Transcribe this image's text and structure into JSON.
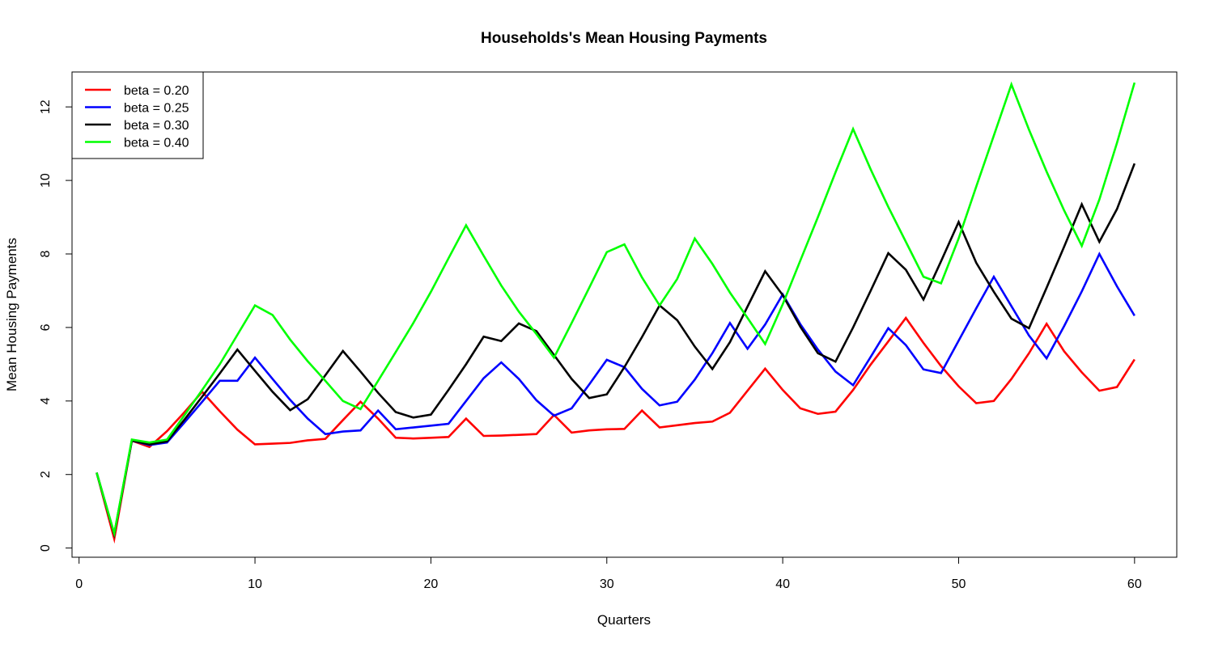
{
  "chart_data": {
    "type": "line",
    "title": "Households's Mean Housing Payments",
    "xlabel": "Quarters",
    "ylabel": "Mean Housing Payments",
    "xlim": [
      -0.4,
      62.4
    ],
    "ylim": [
      -0.25,
      12.95
    ],
    "xticks": [
      0,
      10,
      20,
      30,
      40,
      50,
      60
    ],
    "yticks": [
      0,
      2,
      4,
      6,
      8,
      10,
      12
    ],
    "legend_position": "top-left",
    "x": [
      1,
      2,
      3,
      4,
      5,
      6,
      7,
      8,
      9,
      10,
      11,
      12,
      13,
      14,
      15,
      16,
      17,
      18,
      19,
      20,
      21,
      22,
      23,
      24,
      25,
      26,
      27,
      28,
      29,
      30,
      31,
      32,
      33,
      34,
      35,
      36,
      37,
      38,
      39,
      40,
      41,
      42,
      43,
      44,
      45,
      46,
      47,
      48,
      49,
      50,
      51,
      52,
      53,
      54,
      55,
      56,
      57,
      58,
      59,
      60
    ],
    "series": [
      {
        "name": "beta = 0.20",
        "color": "#ff0000",
        "values": [
          2.05,
          0.25,
          2.92,
          2.75,
          3.18,
          3.7,
          4.25,
          3.72,
          3.22,
          2.82,
          2.84,
          2.86,
          2.93,
          2.97,
          3.48,
          3.98,
          3.52,
          3.0,
          2.98,
          3.0,
          3.02,
          3.52,
          3.05,
          3.06,
          3.08,
          3.1,
          3.62,
          3.14,
          3.2,
          3.23,
          3.24,
          3.74,
          3.28,
          3.34,
          3.4,
          3.44,
          3.68,
          4.28,
          4.88,
          4.3,
          3.8,
          3.65,
          3.71,
          4.3,
          4.99,
          5.62,
          6.26,
          5.58,
          4.95,
          4.4,
          3.94,
          4.0,
          4.6,
          5.3,
          6.1,
          5.35,
          4.78,
          4.28,
          4.38,
          5.13
        ]
      },
      {
        "name": "beta = 0.25",
        "color": "#0000ff",
        "values": [
          2.05,
          0.38,
          2.92,
          2.8,
          2.87,
          3.42,
          3.98,
          4.55,
          4.55,
          5.18,
          4.6,
          4.03,
          3.52,
          3.1,
          3.17,
          3.2,
          3.74,
          3.23,
          3.28,
          3.33,
          3.38,
          4.0,
          4.62,
          5.05,
          4.6,
          4.02,
          3.6,
          3.8,
          4.45,
          5.12,
          4.92,
          4.33,
          3.88,
          3.98,
          4.58,
          5.3,
          6.12,
          5.42,
          6.08,
          6.9,
          6.09,
          5.4,
          4.8,
          4.43,
          5.2,
          5.98,
          5.52,
          4.86,
          4.76,
          5.64,
          6.52,
          7.38,
          6.58,
          5.78,
          5.16,
          6.04,
          6.98,
          8.0,
          7.12,
          6.32
        ]
      },
      {
        "name": "beta = 0.30",
        "color": "#000000",
        "values": [
          2.05,
          0.38,
          2.92,
          2.82,
          2.9,
          3.5,
          4.12,
          4.75,
          5.4,
          4.82,
          4.25,
          3.75,
          4.05,
          4.7,
          5.36,
          4.8,
          4.22,
          3.7,
          3.55,
          3.63,
          4.3,
          5.0,
          5.75,
          5.63,
          6.11,
          5.9,
          5.25,
          4.6,
          4.08,
          4.18,
          4.92,
          5.74,
          6.6,
          6.2,
          5.48,
          4.87,
          5.6,
          6.57,
          7.53,
          6.88,
          6.02,
          5.3,
          5.07,
          6.0,
          7.0,
          8.02,
          7.57,
          6.76,
          7.8,
          8.87,
          7.76,
          6.97,
          6.24,
          5.98,
          7.08,
          8.2,
          9.35,
          8.33,
          9.22,
          10.46
        ]
      },
      {
        "name": "beta = 0.40",
        "color": "#00ff00",
        "values": [
          2.05,
          0.4,
          2.95,
          2.87,
          2.95,
          3.62,
          4.3,
          5.0,
          5.8,
          6.6,
          6.34,
          5.67,
          5.08,
          4.55,
          4.0,
          3.78,
          4.55,
          5.33,
          6.12,
          6.97,
          7.88,
          8.78,
          7.95,
          7.14,
          6.43,
          5.82,
          5.18,
          6.12,
          7.08,
          8.05,
          8.26,
          7.36,
          6.6,
          7.32,
          8.42,
          7.73,
          6.95,
          6.26,
          5.55,
          6.63,
          7.82,
          9.0,
          10.22,
          11.4,
          10.3,
          9.28,
          8.33,
          7.38,
          7.2,
          8.42,
          9.83,
          11.22,
          12.61,
          11.38,
          10.24,
          9.18,
          8.22,
          9.48,
          11.02,
          12.66
        ]
      }
    ]
  }
}
